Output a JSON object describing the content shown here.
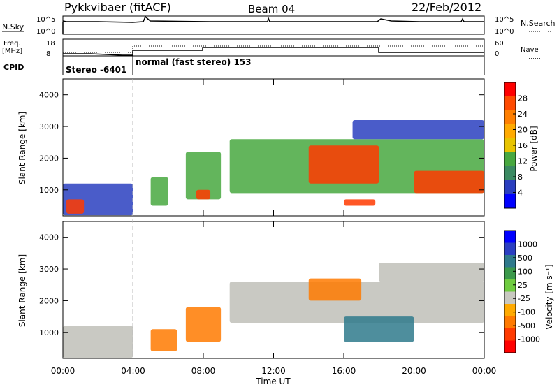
{
  "header": {
    "station": "Pykkvibaer (fitACF)",
    "beam": "Beam 04",
    "date": "22/Feb/2012"
  },
  "strip_labels": {
    "nsky": "N.Sky",
    "nsearch": "N.Search",
    "freq": "Freq.",
    "freq_unit": "[MHz]",
    "nave": "Nave",
    "cpid": "CPID",
    "nsky_ticks": [
      "10^5",
      "10^0"
    ],
    "freq_ticks": [
      "18",
      "8"
    ],
    "nave_ticks": [
      "60",
      "0"
    ],
    "cpid_segments": [
      {
        "label": "Stereo -6401",
        "start_hour": 0.0,
        "end_hour": 4.0
      },
      {
        "label": "normal (fast stereo) 153",
        "start_hour": 4.0,
        "end_hour": 24.0
      }
    ]
  },
  "colorbars": {
    "power": {
      "label": "Power [dB]",
      "ticks": [
        "28",
        "24",
        "20",
        "16",
        "12",
        "8",
        "4"
      ],
      "colors": [
        "#ff0000",
        "#ff4a00",
        "#ff7f00",
        "#ffaa00",
        "#e8c400",
        "#48a840",
        "#3b8a62",
        "#2a3fbf",
        "#0000ff"
      ]
    },
    "velocity": {
      "label": "Velocity [m s⁻¹]",
      "ticks": [
        "1000",
        "500",
        "100",
        "25",
        "-25",
        "-100",
        "-500",
        "-1000"
      ],
      "colors": [
        "#0000ff",
        "#2b3fc2",
        "#2f7a8c",
        "#3c9a4c",
        "#6fcc40",
        "#c8c8c0",
        "#ffaa00",
        "#ff7a00",
        "#ff3a00",
        "#ff0000"
      ]
    }
  },
  "chart_data": [
    {
      "type": "heatmap",
      "title": "Power",
      "xlabel": "Time UT",
      "ylabel": "Slant Range [km]",
      "xlim": [
        0,
        24
      ],
      "ylim": [
        180,
        4500
      ],
      "x_ticks": [
        "00:00",
        "04:00",
        "08:00",
        "12:00",
        "16:00",
        "20:00",
        "00:00"
      ],
      "y_ticks": [
        1000,
        2000,
        3000,
        4000
      ],
      "regions": [
        {
          "t0": 0.0,
          "t1": 4.0,
          "r0": 200,
          "r1": 1200,
          "level": "low"
        },
        {
          "t0": 0.2,
          "t1": 1.2,
          "r0": 250,
          "r1": 700,
          "level": "high"
        },
        {
          "t0": 5.0,
          "t1": 6.0,
          "r0": 500,
          "r1": 1400,
          "level": "mid"
        },
        {
          "t0": 7.0,
          "t1": 9.0,
          "r0": 700,
          "r1": 2200,
          "level": "mid"
        },
        {
          "t0": 7.6,
          "t1": 8.4,
          "r0": 700,
          "r1": 1000,
          "level": "high"
        },
        {
          "t0": 9.5,
          "t1": 24.0,
          "r0": 900,
          "r1": 2600,
          "level": "mid"
        },
        {
          "t0": 14.0,
          "t1": 18.0,
          "r0": 1200,
          "r1": 2400,
          "level": "high"
        },
        {
          "t0": 20.0,
          "t1": 24.0,
          "r0": 900,
          "r1": 1600,
          "level": "high"
        },
        {
          "t0": 16.0,
          "t1": 17.8,
          "r0": 500,
          "r1": 700,
          "level": "high"
        },
        {
          "t0": 16.5,
          "t1": 24.0,
          "r0": 2600,
          "r1": 3200,
          "level": "low"
        }
      ]
    },
    {
      "type": "heatmap",
      "title": "Velocity",
      "xlabel": "Time UT",
      "ylabel": "Slant Range [km]",
      "xlim": [
        0,
        24
      ],
      "ylim": [
        180,
        4500
      ],
      "x_ticks": [
        "00:00",
        "04:00",
        "08:00",
        "12:00",
        "16:00",
        "20:00",
        "00:00"
      ],
      "y_ticks": [
        1000,
        2000,
        3000,
        4000
      ],
      "regions": [
        {
          "t0": 0.0,
          "t1": 4.0,
          "r0": 200,
          "r1": 1200,
          "level": "ground"
        },
        {
          "t0": 5.0,
          "t1": 6.5,
          "r0": 400,
          "r1": 1100,
          "level": "toward"
        },
        {
          "t0": 7.0,
          "t1": 9.0,
          "r0": 700,
          "r1": 1800,
          "level": "toward"
        },
        {
          "t0": 9.5,
          "t1": 24.0,
          "r0": 1300,
          "r1": 2600,
          "level": "ground"
        },
        {
          "t0": 14.0,
          "t1": 17.0,
          "r0": 2000,
          "r1": 2700,
          "level": "toward"
        },
        {
          "t0": 16.0,
          "t1": 20.0,
          "r0": 700,
          "r1": 1500,
          "level": "away"
        },
        {
          "t0": 18.0,
          "t1": 24.0,
          "r0": 2600,
          "r1": 3200,
          "level": "ground"
        }
      ]
    }
  ]
}
